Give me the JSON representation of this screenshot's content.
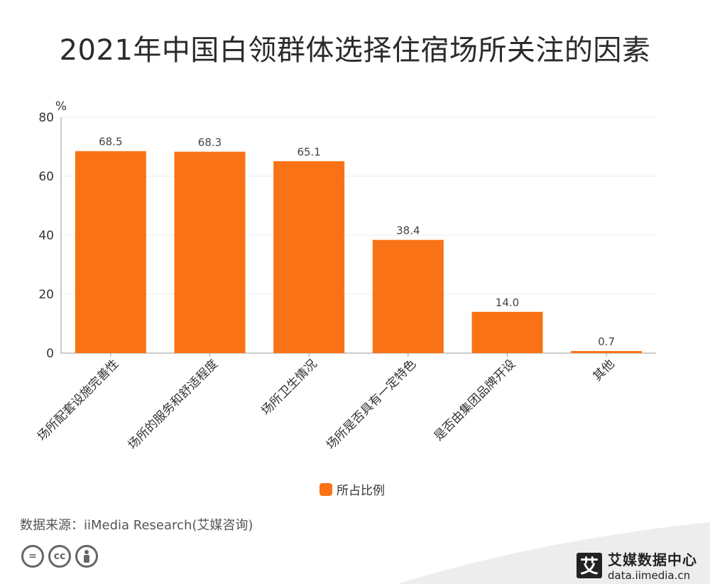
{
  "title": "2021年中国白领群体选择住宿场所关注的因素",
  "source": "数据来源：iiMedia Research(艾媒咨询)",
  "brand": {
    "name": "艾媒数据中心",
    "url": "data.iimedia.cn",
    "logo_char": "艾"
  },
  "license_icons": [
    "equals-icon",
    "cc-icon",
    "person-icon"
  ],
  "license_text": {
    "equals": "=",
    "cc": "cc"
  },
  "colors": {
    "bar": "#f97316",
    "axis": "#999999",
    "grid": "#eeeeee"
  },
  "chart_data": {
    "type": "bar",
    "unit": "%",
    "categories": [
      "场所配套设施完善性",
      "场所的服务和舒适程度",
      "场所卫生情况",
      "场所是否具有一定特色",
      "是否由集团品牌开设",
      "其他"
    ],
    "series": [
      {
        "name": "所占比例",
        "values": [
          68.5,
          68.3,
          65.1,
          38.4,
          14.0,
          0.7
        ]
      }
    ],
    "value_labels": [
      "68.5",
      "68.3",
      "65.1",
      "38.4",
      "14.0",
      "0.7"
    ],
    "ylim": [
      0,
      80
    ],
    "yticks": [
      0,
      20,
      40,
      60,
      80
    ],
    "grid": true,
    "legend": "bottom"
  }
}
